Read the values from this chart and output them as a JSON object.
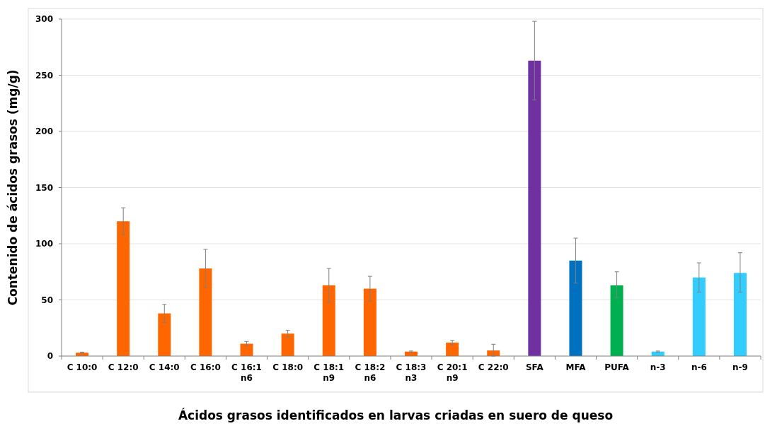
{
  "chart_data": {
    "type": "bar",
    "xlabel": "Ácidos grasos identificados en larvas criadas en suero de queso",
    "ylabel": "Contenido de ácidos grasos (mg/g)",
    "categories": [
      "C 10:0",
      "C 12:0",
      "C 14:0",
      "C 16:0",
      "C 16:1\nn6",
      "C 18:0",
      "C 18:1\nn9",
      "C 18:2\nn6",
      "C 18:3\nn3",
      "C 20:1\nn9",
      "C 22:0",
      "SFA",
      "MFA",
      "PUFA",
      "n-3",
      "n-6",
      "n-9"
    ],
    "values": [
      3,
      120,
      38,
      78,
      11,
      20,
      63,
      60,
      4,
      12,
      5,
      263,
      85,
      63,
      4,
      70,
      74
    ],
    "errors": [
      0.5,
      12,
      8,
      17,
      2,
      3,
      15,
      11,
      0.5,
      2,
      [
        0,
        10.5
      ],
      35,
      20,
      [
        52,
        75
      ],
      0.5,
      [
        57,
        83
      ],
      [
        57,
        92
      ]
    ],
    "colors": [
      "#ff6600",
      "#ff6600",
      "#ff6600",
      "#ff6600",
      "#ff6600",
      "#ff6600",
      "#ff6600",
      "#ff6600",
      "#ff6600",
      "#ff6600",
      "#ff6600",
      "#7030a0",
      "#0070c0",
      "#00b050",
      "#33ccff",
      "#33ccff",
      "#33ccff"
    ],
    "ylim": [
      0,
      300
    ],
    "yticks": [
      0,
      50,
      100,
      150,
      200,
      250,
      300
    ],
    "grid": "y"
  }
}
